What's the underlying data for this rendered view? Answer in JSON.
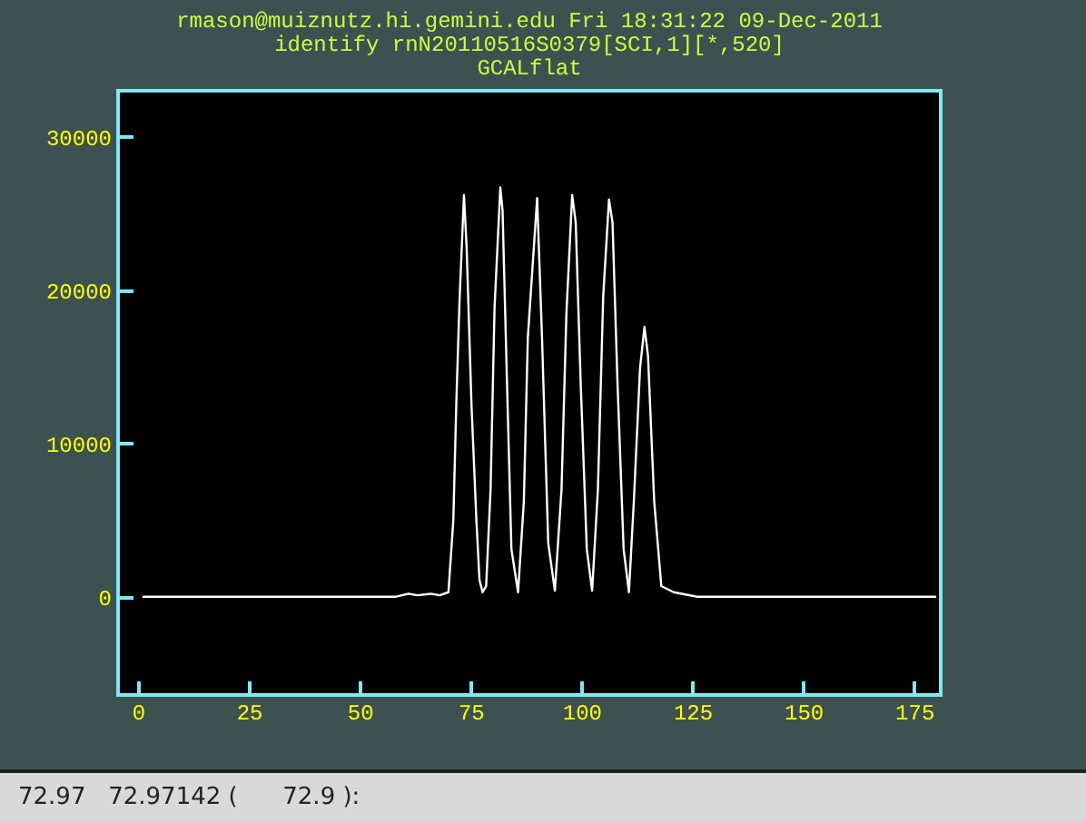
{
  "chart_data": {
    "type": "line",
    "title": "rmason@muiznutz.hi.gemini.edu Fri 18:31:22 09-Dec-2011",
    "subtitle": "identify rnN20110516S0379[SCI,1][*,520]\nGCALflat",
    "annotations": [
      "72.97   72.97142 (      72.9 ):"
    ],
    "series": [
      {
        "color": "#ffffff",
        "x": [
          1,
          20,
          40,
          50.8,
          58,
          61,
          63,
          66,
          68,
          70.0,
          71.1,
          71.8,
          72.5,
          73.5,
          74.1,
          75.2,
          76.3,
          77.0,
          77.7,
          78.5,
          79.5,
          80.4,
          81.7,
          82.2,
          83.3,
          84.2,
          85.7,
          87.0,
          87.9,
          90.0,
          91.1,
          92.5,
          94.0,
          95.5,
          96.6,
          97.9,
          98.7,
          99.8,
          101.2,
          102.4,
          103.7,
          104.9,
          106.2,
          107.0,
          108.1,
          109.5,
          110.7,
          111.8,
          113.2,
          114.2,
          115.0,
          116.4,
          118.0,
          120.8,
          126.2,
          140,
          160,
          180
        ],
        "values": [
          0,
          0,
          0,
          0,
          0,
          200,
          100,
          200,
          100,
          300,
          5000,
          12900,
          19300,
          26200,
          22800,
          12500,
          5000,
          1100,
          300,
          700,
          7000,
          18900,
          26700,
          25200,
          12900,
          3100,
          300,
          6200,
          16900,
          26000,
          16900,
          3500,
          400,
          7000,
          18500,
          26200,
          24400,
          14100,
          3100,
          400,
          7000,
          19600,
          25900,
          24400,
          14100,
          3100,
          300,
          6200,
          14900,
          17600,
          15700,
          6200,
          700,
          300,
          0,
          0,
          0,
          0
        ]
      }
    ],
    "xlim": [
      -4.5,
      181
    ],
    "xticks": [
      0,
      25,
      50,
      75,
      100,
      125,
      150,
      175
    ],
    "ylim": [
      -6400,
      33000
    ],
    "yticks": [
      0,
      10000,
      20000,
      30000
    ],
    "grid": false,
    "marker": "none",
    "line_style": "solid"
  }
}
